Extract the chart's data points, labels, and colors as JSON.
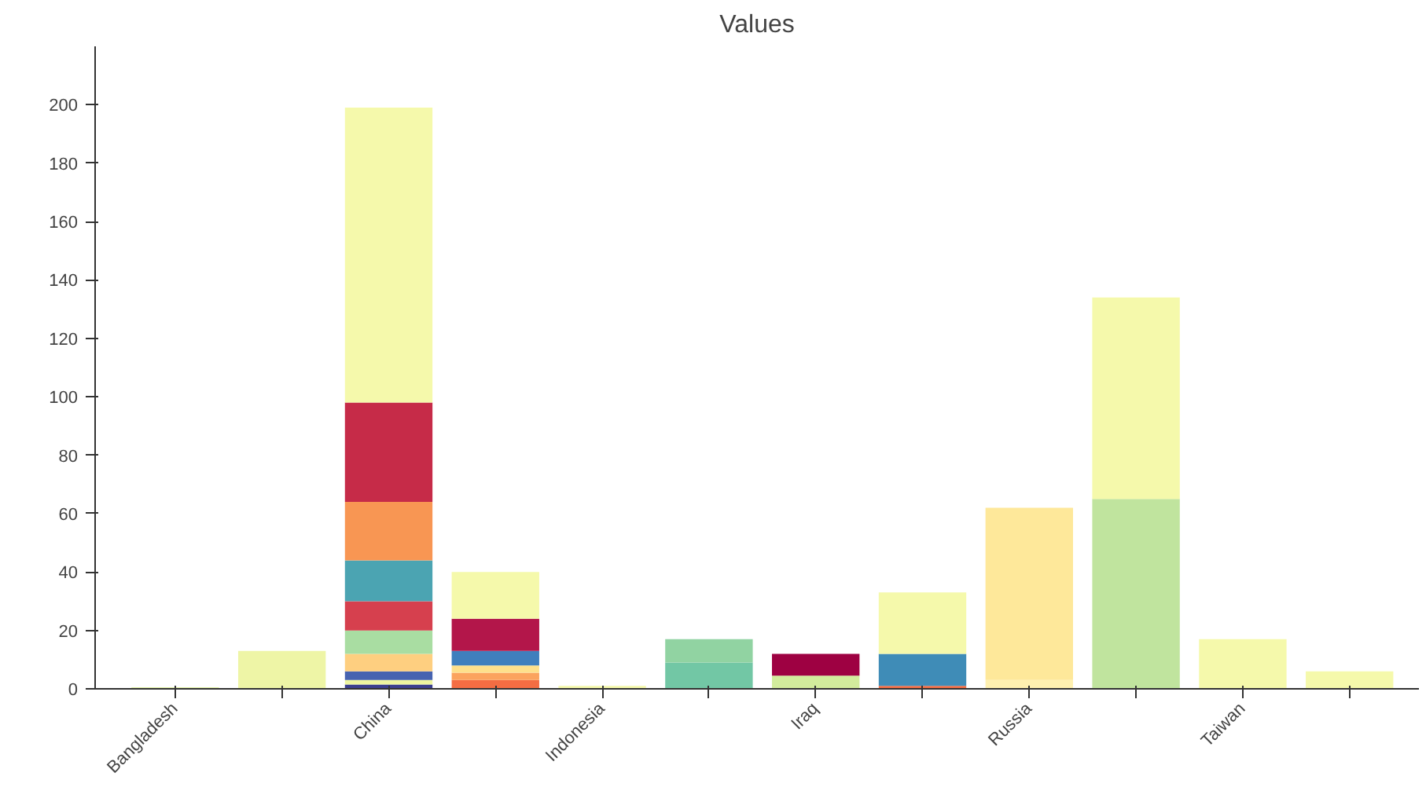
{
  "chart_data": {
    "type": "bar",
    "title": "Values",
    "stacked": true,
    "categories": [
      "Bangladesh",
      null,
      "China",
      null,
      "Indonesia",
      null,
      "Iraq",
      null,
      "Russia",
      null,
      "Taiwan",
      null
    ],
    "series": [
      {
        "values": [
          0.5,
          13,
          1.5,
          3,
          1,
          9,
          4.5,
          1,
          3,
          65,
          17,
          6
        ],
        "colors": [
          "#d9ef8b",
          "#eef5a6",
          "#3b3f8f",
          "#f46d43",
          "#f5f9ab",
          "#72c7a5",
          "#d2ec9c",
          "#f46d43",
          "#fef0b0",
          "#c0e49e",
          "#f5f9ab",
          "#f5f9ab"
        ]
      },
      {
        "values": [
          null,
          null,
          1.5,
          2.5,
          null,
          8,
          7.5,
          11,
          59,
          69,
          null,
          null
        ],
        "colors": [
          null,
          null,
          "#eef5a0",
          "#fba35e",
          null,
          "#91d3a2",
          "#9e0142",
          "#3f8cb7",
          "#fee89a",
          "#f5f9ab",
          null,
          null
        ]
      },
      {
        "values": [
          null,
          null,
          3,
          2.5,
          null,
          null,
          null,
          21,
          null,
          null,
          null,
          null
        ],
        "colors": [
          null,
          null,
          "#4763b0",
          "#fee08b",
          null,
          null,
          null,
          "#f5f9ab",
          null,
          null,
          null,
          null
        ]
      },
      {
        "values": [
          null,
          null,
          6,
          5,
          null,
          null,
          null,
          null,
          null,
          null,
          null,
          null
        ],
        "colors": [
          null,
          null,
          "#fecf80",
          "#3f7fbd",
          null,
          null,
          null,
          null,
          null,
          null,
          null,
          null
        ]
      },
      {
        "values": [
          null,
          null,
          8,
          11,
          null,
          null,
          null,
          null,
          null,
          null,
          null,
          null
        ],
        "colors": [
          null,
          null,
          "#a9dda2",
          "#b3164a",
          null,
          null,
          null,
          null,
          null,
          null,
          null,
          null
        ]
      },
      {
        "values": [
          null,
          null,
          10,
          16,
          null,
          null,
          null,
          null,
          null,
          null,
          null,
          null
        ],
        "colors": [
          null,
          null,
          "#d6404e",
          "#f5f9ab",
          null,
          null,
          null,
          null,
          null,
          null,
          null,
          null
        ]
      },
      {
        "values": [
          null,
          null,
          14,
          null,
          null,
          null,
          null,
          null,
          null,
          null,
          null,
          null
        ],
        "colors": [
          null,
          null,
          "#4ba4b2",
          null,
          null,
          null,
          null,
          null,
          null,
          null,
          null,
          null
        ]
      },
      {
        "values": [
          null,
          null,
          20,
          null,
          null,
          null,
          null,
          null,
          null,
          null,
          null,
          null
        ],
        "colors": [
          null,
          null,
          "#f89653",
          null,
          null,
          null,
          null,
          null,
          null,
          null,
          null,
          null
        ]
      },
      {
        "values": [
          null,
          null,
          34,
          null,
          null,
          null,
          null,
          null,
          null,
          null,
          null,
          null
        ],
        "colors": [
          null,
          null,
          "#c62b48",
          null,
          null,
          null,
          null,
          null,
          null,
          null,
          null,
          null
        ]
      },
      {
        "values": [
          null,
          null,
          101,
          null,
          null,
          null,
          null,
          null,
          null,
          null,
          null,
          null
        ],
        "colors": [
          null,
          null,
          "#f5f9ab",
          null,
          null,
          null,
          null,
          null,
          null,
          null,
          null,
          null
        ]
      }
    ],
    "ylim": [
      0,
      220
    ],
    "yticks": [
      0,
      20,
      40,
      60,
      80,
      100,
      120,
      140,
      160,
      180,
      200
    ],
    "grid": false
  }
}
